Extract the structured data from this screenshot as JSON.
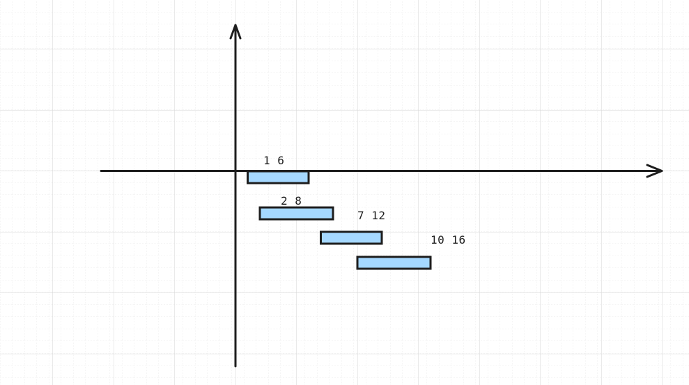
{
  "canvas": {
    "background_color": "#ffffff",
    "grid_major_color": "#dcdcdc",
    "grid_minor_color": "#ebebeb"
  },
  "axes": {
    "color": "#1e1e1e",
    "x_arrow": "arrow-right",
    "y_arrow": "arrow-up"
  },
  "intervals": [
    {
      "start": 1,
      "end": 6,
      "label": "1 6"
    },
    {
      "start": 2,
      "end": 8,
      "label": "2 8"
    },
    {
      "start": 7,
      "end": 12,
      "label": "7 12"
    },
    {
      "start": 10,
      "end": 16,
      "label": "10 16"
    }
  ],
  "interval_style": {
    "fill_color": "#a5d8ff",
    "stroke_color": "#1e1e1e"
  }
}
